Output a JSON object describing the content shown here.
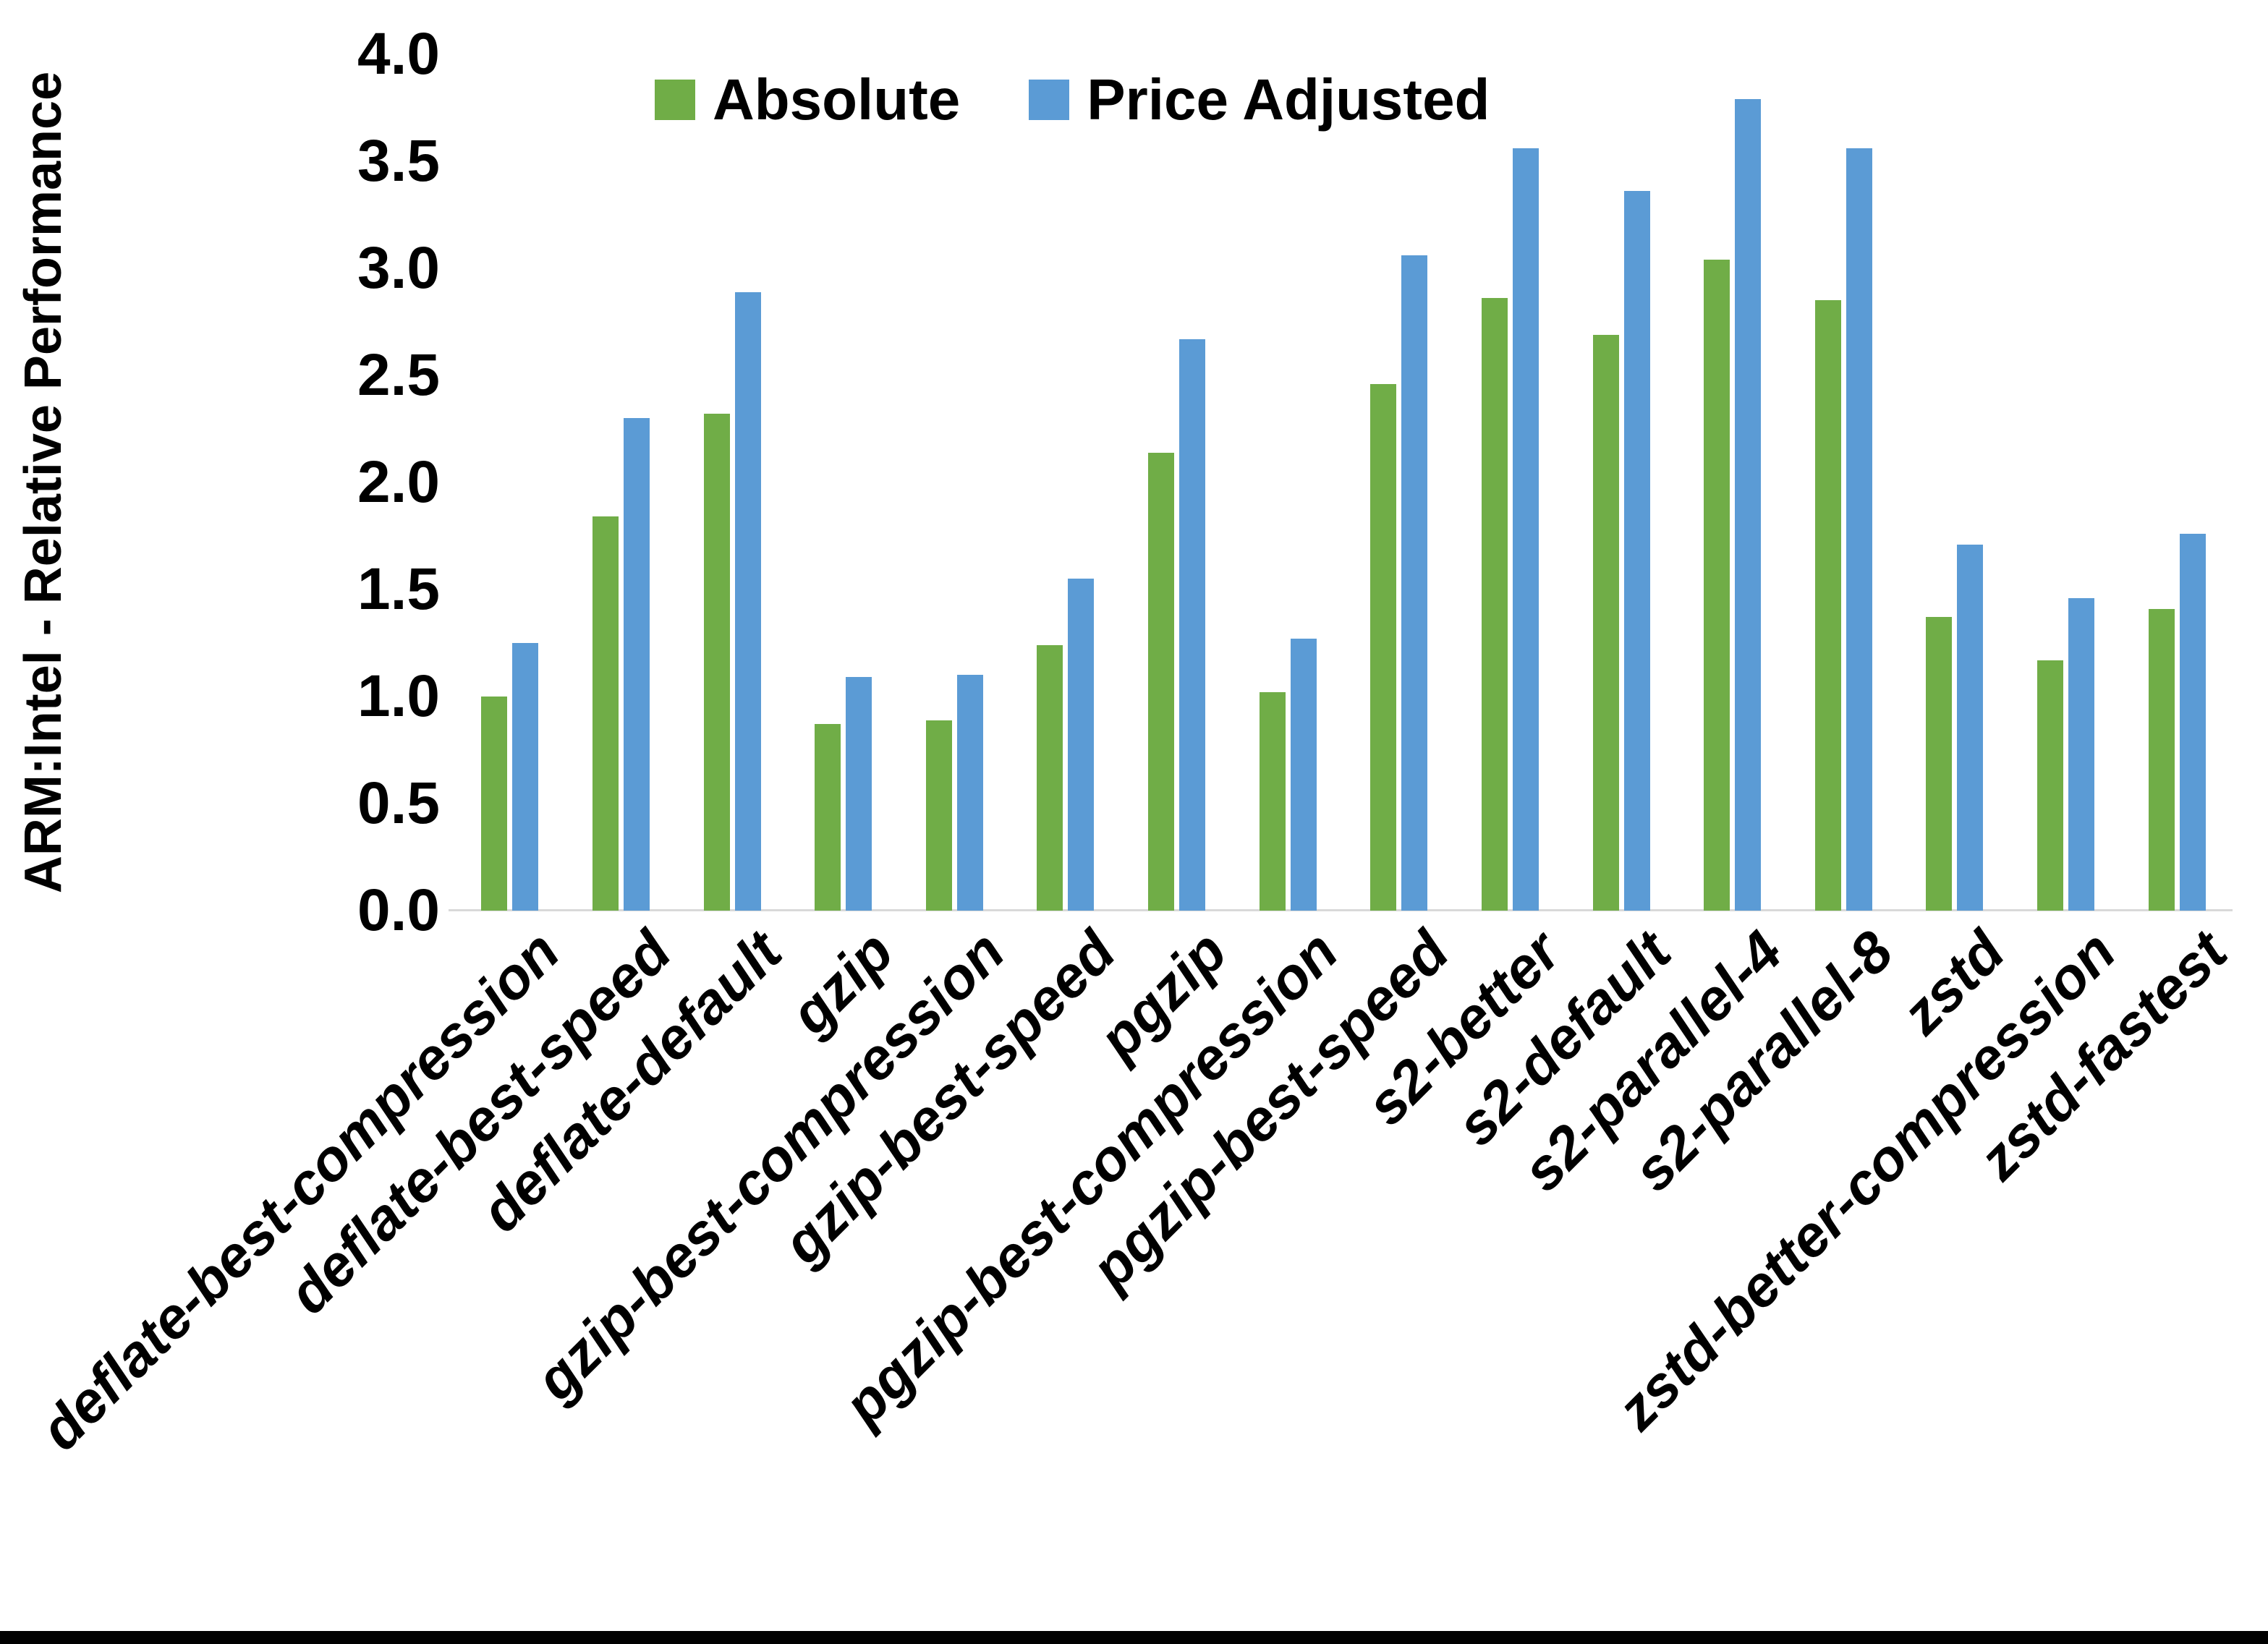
{
  "chart_data": {
    "type": "bar",
    "title": "",
    "xlabel": "",
    "ylabel": "ARM:Intel - Relative Performance",
    "ylim": [
      0.0,
      4.0
    ],
    "ytick_step": 0.5,
    "ytick_labels": [
      "0.0",
      "0.5",
      "1.0",
      "1.5",
      "2.0",
      "2.5",
      "3.0",
      "3.5",
      "4.0"
    ],
    "grid": false,
    "legend_position": "top-center",
    "categories": [
      "deflate-best-compression",
      "deflate-best-speed",
      "deflate-default",
      "gzip",
      "gzip-best-compression",
      "gzip-best-speed",
      "pgzip",
      "pgzip-best-compression",
      "pgzip-best-speed",
      "s2-better",
      "s2-default",
      "s2-parallel-4",
      "s2-parallel-8",
      "zstd",
      "zstd-better-compression",
      "zstd-fastest"
    ],
    "series": [
      {
        "name": "Absolute",
        "color": "#70AD47",
        "values": [
          1.0,
          1.84,
          2.32,
          0.87,
          0.89,
          1.24,
          2.14,
          1.02,
          2.46,
          2.86,
          2.69,
          3.04,
          2.85,
          1.37,
          1.17,
          1.41
        ]
      },
      {
        "name": "Price Adjusted",
        "color": "#5B9BD5",
        "values": [
          1.25,
          2.3,
          2.89,
          1.09,
          1.1,
          1.55,
          2.67,
          1.27,
          3.06,
          3.56,
          3.36,
          3.79,
          3.56,
          1.71,
          1.46,
          1.76
        ]
      }
    ]
  },
  "colors": {
    "background": "#FFFFFF",
    "axis_line": "#D9D9D9",
    "text": "#000000",
    "bottom_border": "#000000"
  }
}
